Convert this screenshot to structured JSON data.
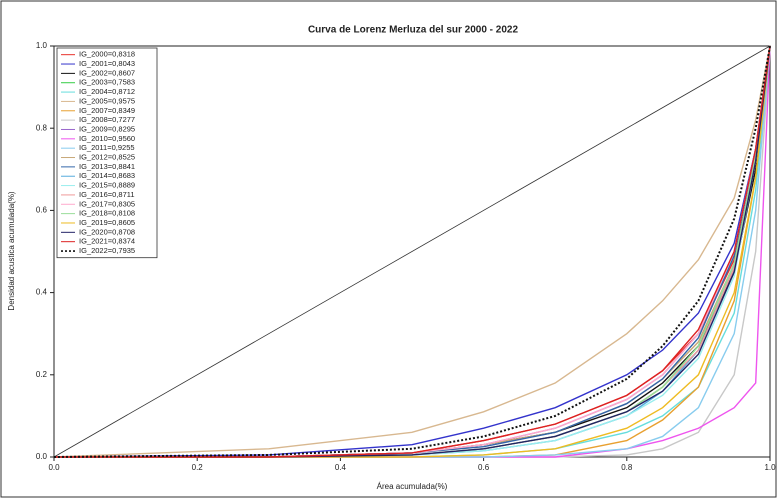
{
  "chart_data": {
    "type": "line",
    "title": "Curva de Lorenz Merluza del sur 2000 - 2022",
    "x_label": "Área acumulada(%)",
    "y_label": "Densidad acustica acumulada(%)",
    "xlim": [
      0,
      1
    ],
    "ylim": [
      0,
      1
    ],
    "xticks": [
      {
        "value": 0,
        "label": "0.0"
      },
      0.2,
      0.4,
      0.6,
      0.8,
      {
        "value": 1,
        "label": "1.0"
      }
    ],
    "yticks": [
      {
        "value": 0,
        "label": "0.0"
      },
      0.2,
      0.4,
      0.6,
      0.8,
      {
        "value": 1,
        "label": "1.0"
      }
    ],
    "legend": "top-left",
    "diagonal": {
      "x": [
        0,
        1
      ],
      "values": [
        0,
        1
      ],
      "color": "#333333"
    },
    "x": [
      0,
      0.3,
      0.5,
      0.6,
      0.7,
      0.8,
      0.85,
      0.9,
      0.95,
      0.98,
      1
    ],
    "series": [
      {
        "name": "IG_2000=0,8318",
        "color": "#e8312b",
        "values": [
          0,
          0,
          0.01,
          0.04,
          0.08,
          0.15,
          0.21,
          0.3,
          0.48,
          0.72,
          1
        ]
      },
      {
        "name": "IG_2001=0,8043",
        "color": "#3333cc",
        "values": [
          0,
          0.005,
          0.03,
          0.07,
          0.12,
          0.2,
          0.26,
          0.35,
          0.52,
          0.75,
          1
        ]
      },
      {
        "name": "IG_2002=0,8607",
        "color": "#111111",
        "values": [
          0,
          0,
          0.01,
          0.03,
          0.06,
          0.12,
          0.18,
          0.27,
          0.45,
          0.7,
          1
        ]
      },
      {
        "name": "IG_2003=0,7583",
        "color": "#33cc44",
        "values": [
          0,
          0,
          0.005,
          0.02,
          0.05,
          0.11,
          0.17,
          0.27,
          0.47,
          0.73,
          1
        ]
      },
      {
        "name": "IG_2004=0,8712",
        "color": "#66dddd",
        "values": [
          0,
          0,
          0,
          0.005,
          0.02,
          0.06,
          0.1,
          0.17,
          0.35,
          0.65,
          1
        ]
      },
      {
        "name": "IG_2005=0,9575",
        "color": "#d8b890",
        "values": [
          0,
          0.02,
          0.06,
          0.11,
          0.18,
          0.3,
          0.38,
          0.48,
          0.63,
          0.82,
          1
        ]
      },
      {
        "name": "IG_2007=0,8349",
        "color": "#e8a030",
        "values": [
          0,
          0,
          0,
          0,
          0.005,
          0.04,
          0.09,
          0.17,
          0.38,
          0.68,
          1
        ]
      },
      {
        "name": "IG_2008=0,7277",
        "color": "#c8c8c8",
        "values": [
          0,
          0,
          0,
          0,
          0,
          0.005,
          0.02,
          0.06,
          0.2,
          0.5,
          1
        ]
      },
      {
        "name": "IG_2009=0,8295",
        "color": "#9966cc",
        "values": [
          0,
          0,
          0.01,
          0.03,
          0.07,
          0.14,
          0.2,
          0.3,
          0.5,
          0.75,
          1
        ]
      },
      {
        "name": "IG_2010=0,9560",
        "color": "#ee55ee",
        "values": [
          0,
          0,
          0,
          0,
          0,
          0.02,
          0.04,
          0.07,
          0.12,
          0.18,
          1
        ]
      },
      {
        "name": "IG_2011=0,9255",
        "color": "#88ccee",
        "values": [
          0,
          0,
          0,
          0,
          0.005,
          0.02,
          0.05,
          0.12,
          0.3,
          0.6,
          1
        ]
      },
      {
        "name": "IG_2012=0,8525",
        "color": "#c8a878",
        "values": [
          0,
          0,
          0.01,
          0.03,
          0.06,
          0.13,
          0.19,
          0.28,
          0.47,
          0.73,
          1
        ]
      },
      {
        "name": "IG_2013=0,8841",
        "color": "#3366aa",
        "values": [
          0,
          0,
          0.01,
          0.025,
          0.06,
          0.13,
          0.19,
          0.29,
          0.49,
          0.75,
          1
        ]
      },
      {
        "name": "IG_2014=0,8683",
        "color": "#55aadd",
        "values": [
          0,
          0,
          0.005,
          0.015,
          0.04,
          0.1,
          0.16,
          0.26,
          0.46,
          0.72,
          1
        ]
      },
      {
        "name": "IG_2015=0,8889",
        "color": "#99eeee",
        "values": [
          0,
          0,
          0.005,
          0.015,
          0.04,
          0.1,
          0.15,
          0.24,
          0.44,
          0.72,
          1
        ]
      },
      {
        "name": "IG_2016=0,8711",
        "color": "#ee9999",
        "values": [
          0,
          0,
          0.005,
          0.02,
          0.05,
          0.11,
          0.17,
          0.26,
          0.46,
          0.72,
          1
        ]
      },
      {
        "name": "IG_2017=0,8305",
        "color": "#ffaacc",
        "values": [
          0,
          0,
          0.01,
          0.03,
          0.07,
          0.14,
          0.2,
          0.3,
          0.5,
          0.75,
          1
        ]
      },
      {
        "name": "IG_2018=0,8108",
        "color": "#99dd99",
        "values": [
          0,
          0,
          0.005,
          0.02,
          0.05,
          0.11,
          0.17,
          0.27,
          0.47,
          0.73,
          1
        ]
      },
      {
        "name": "IG_2019=0,8605",
        "color": "#eebb22",
        "values": [
          0,
          0,
          0,
          0.005,
          0.02,
          0.07,
          0.12,
          0.2,
          0.4,
          0.68,
          1
        ]
      },
      {
        "name": "IG_2020=0,8708",
        "color": "#222266",
        "values": [
          0,
          0,
          0.005,
          0.02,
          0.05,
          0.11,
          0.16,
          0.25,
          0.45,
          0.72,
          1
        ]
      },
      {
        "name": "IG_2021=0,8374",
        "color": "#dd2222",
        "values": [
          0,
          0,
          0.01,
          0.04,
          0.08,
          0.15,
          0.21,
          0.31,
          0.5,
          0.75,
          1
        ]
      },
      {
        "name": "IG_2022=0,7935",
        "color": "#111111",
        "dash": true,
        "values": [
          0,
          0.005,
          0.02,
          0.05,
          0.1,
          0.19,
          0.27,
          0.38,
          0.58,
          0.8,
          1
        ]
      }
    ]
  }
}
